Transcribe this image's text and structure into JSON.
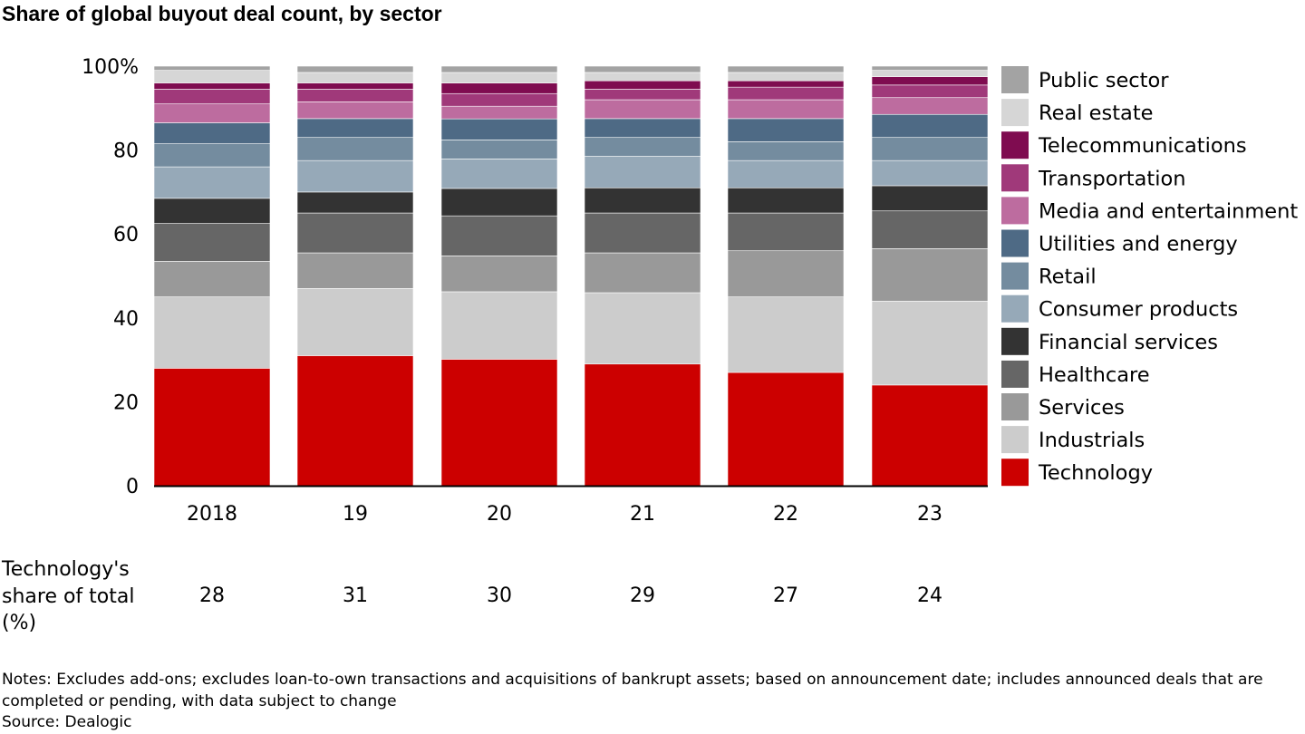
{
  "title": "Share of global buyout deal count, by sector",
  "chart_data": {
    "type": "bar",
    "stacked": true,
    "categories": [
      "2018",
      "19",
      "20",
      "21",
      "22",
      "23"
    ],
    "ylim": [
      0,
      100
    ],
    "yticks": [
      "0",
      "20",
      "40",
      "60",
      "80",
      "100%"
    ],
    "legend_position": "right",
    "series": [
      {
        "name": "Technology",
        "color": "#CC0000",
        "values": [
          28,
          31,
          30,
          29,
          27,
          24
        ]
      },
      {
        "name": "Industrials",
        "color": "#CCCCCC",
        "values": [
          17,
          16,
          16,
          17,
          18,
          20
        ]
      },
      {
        "name": "Services",
        "color": "#999999",
        "values": [
          8.5,
          8.5,
          8.5,
          9.5,
          11,
          12.5
        ]
      },
      {
        "name": "Healthcare",
        "color": "#666666",
        "values": [
          9,
          9.5,
          9.5,
          9.5,
          9,
          9
        ]
      },
      {
        "name": "Financial services",
        "color": "#333333",
        "values": [
          6,
          5,
          6.5,
          6,
          6,
          6
        ]
      },
      {
        "name": "Consumer products",
        "color": "#96A9B8",
        "values": [
          7.5,
          7.5,
          7,
          7.5,
          6.5,
          6
        ]
      },
      {
        "name": "Retail",
        "color": "#748C9F",
        "values": [
          5.5,
          5.5,
          4.5,
          4.5,
          4.5,
          5.5
        ]
      },
      {
        "name": "Utilities and energy",
        "color": "#4E6A85",
        "values": [
          5,
          4.5,
          5,
          4.5,
          5.5,
          5.5
        ]
      },
      {
        "name": "Media and entertainment",
        "color": "#BD6C9F",
        "values": [
          4.5,
          4,
          3,
          4.5,
          4.5,
          4
        ]
      },
      {
        "name": "Transportation",
        "color": "#A0397A",
        "values": [
          3.5,
          3,
          3,
          2.5,
          3,
          3
        ]
      },
      {
        "name": "Telecommunications",
        "color": "#7F0C50",
        "values": [
          1.5,
          1.5,
          2.5,
          2,
          1.5,
          2
        ]
      },
      {
        "name": "Real estate",
        "color": "#D6D6D6",
        "values": [
          3,
          2.5,
          2.5,
          2,
          2,
          1.5
        ]
      },
      {
        "name": "Public sector",
        "color": "#A3A3A3",
        "values": [
          1,
          1.5,
          1.5,
          1.5,
          1.5,
          1
        ]
      }
    ]
  },
  "tech_share": {
    "label": "Technology's share of total (%)",
    "values": [
      "28",
      "31",
      "30",
      "29",
      "27",
      "24"
    ]
  },
  "notes": "Notes: Excludes add-ons; excludes loan-to-own transactions and acquisitions of bankrupt assets; based on announcement date; includes announced deals that are completed or pending, with data subject to change",
  "source": "Source: Dealogic"
}
